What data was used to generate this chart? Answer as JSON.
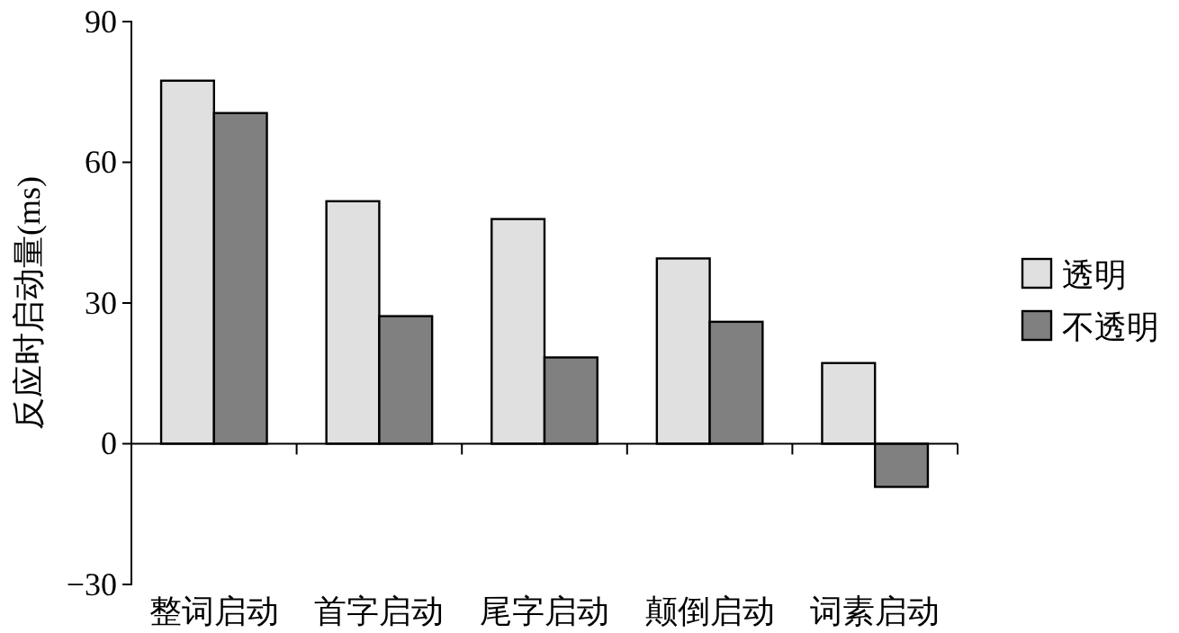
{
  "chart_data": {
    "type": "bar",
    "ylabel": "反应时启动量(ms)",
    "categories": [
      "整词启动",
      "首字启动",
      "尾字启动",
      "颠倒启动",
      "词素启动"
    ],
    "series": [
      {
        "name": "透明",
        "color": "#e0e0e0",
        "values": [
          77.4,
          51.7,
          47.9,
          39.5,
          17.2
        ]
      },
      {
        "name": "不透明",
        "color": "#808080",
        "values": [
          70.5,
          27.2,
          18.4,
          26,
          -9.2
        ]
      }
    ],
    "ylim": [
      -30,
      90
    ],
    "yticks": [
      -30,
      0,
      30,
      60,
      90
    ],
    "legend": "right"
  }
}
